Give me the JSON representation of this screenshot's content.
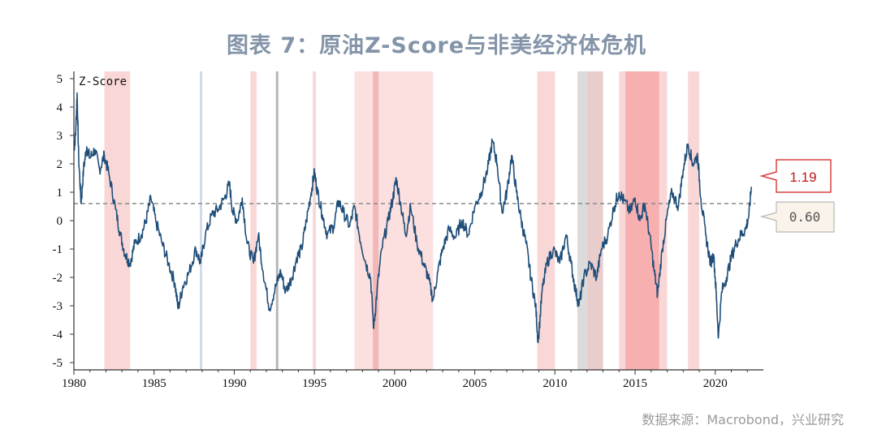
{
  "title": "图表 7：原油Z-Score与非美经济体危机",
  "source": "数据来源：Macrobond，兴业研究",
  "chart_data": {
    "type": "line",
    "series_name": "Z-Score",
    "xlim": [
      1980,
      2023
    ],
    "ylim": [
      -5,
      5
    ],
    "x_ticks": [
      1980,
      1985,
      1990,
      1995,
      2000,
      2005,
      2010,
      2015,
      2020
    ],
    "y_ticks": [
      5,
      4,
      3,
      2,
      1,
      0,
      -1,
      -2,
      -3,
      -4,
      -5
    ],
    "reference_line": {
      "value": 0.6,
      "label": "0.60",
      "style": "dashed"
    },
    "latest_value": {
      "value": 1.19,
      "label": "1.19"
    },
    "line_color": "#1f4e79",
    "points": [
      [
        1980.0,
        2.5
      ],
      [
        1980.1,
        3.0
      ],
      [
        1980.2,
        4.5
      ],
      [
        1980.3,
        2.2
      ],
      [
        1980.45,
        0.6
      ],
      [
        1980.6,
        1.8
      ],
      [
        1980.8,
        2.6
      ],
      [
        1981.0,
        2.2
      ],
      [
        1981.3,
        2.5
      ],
      [
        1981.6,
        1.8
      ],
      [
        1981.9,
        2.3
      ],
      [
        1982.2,
        1.6
      ],
      [
        1982.6,
        0.4
      ],
      [
        1982.9,
        -0.5
      ],
      [
        1983.2,
        -1.2
      ],
      [
        1983.5,
        -1.5
      ],
      [
        1983.8,
        -0.8
      ],
      [
        1984.2,
        -0.5
      ],
      [
        1984.5,
        0.0
      ],
      [
        1984.8,
        0.8
      ],
      [
        1985.1,
        0.0
      ],
      [
        1985.5,
        -0.8
      ],
      [
        1985.9,
        -1.5
      ],
      [
        1986.3,
        -2.2
      ],
      [
        1986.5,
        -3.1
      ],
      [
        1986.8,
        -2.3
      ],
      [
        1987.2,
        -1.8
      ],
      [
        1987.6,
        -1.0
      ],
      [
        1987.9,
        -1.5
      ],
      [
        1988.2,
        -0.5
      ],
      [
        1988.6,
        0.2
      ],
      [
        1989.0,
        0.4
      ],
      [
        1989.4,
        0.8
      ],
      [
        1989.7,
        1.3
      ],
      [
        1989.9,
        0.3
      ],
      [
        1990.2,
        0.0
      ],
      [
        1990.5,
        0.8
      ],
      [
        1990.8,
        -0.8
      ],
      [
        1991.2,
        -1.5
      ],
      [
        1991.5,
        -0.5
      ],
      [
        1991.8,
        -1.8
      ],
      [
        1992.2,
        -3.1
      ],
      [
        1992.6,
        -2.3
      ],
      [
        1992.9,
        -1.8
      ],
      [
        1993.2,
        -2.5
      ],
      [
        1993.6,
        -2.0
      ],
      [
        1993.9,
        -1.3
      ],
      [
        1994.2,
        -1.0
      ],
      [
        1994.5,
        0.0
      ],
      [
        1994.8,
        1.0
      ],
      [
        1995.0,
        1.7
      ],
      [
        1995.2,
        1.0
      ],
      [
        1995.5,
        0.2
      ],
      [
        1995.8,
        -0.5
      ],
      [
        1996.2,
        -0.2
      ],
      [
        1996.5,
        0.7
      ],
      [
        1996.8,
        0.3
      ],
      [
        1997.2,
        -0.2
      ],
      [
        1997.5,
        0.5
      ],
      [
        1997.8,
        -0.5
      ],
      [
        1998.2,
        -1.5
      ],
      [
        1998.5,
        -2.0
      ],
      [
        1998.7,
        -3.8
      ],
      [
        1998.9,
        -2.5
      ],
      [
        1999.2,
        -1.0
      ],
      [
        1999.6,
        0.0
      ],
      [
        1999.9,
        0.8
      ],
      [
        2000.1,
        1.5
      ],
      [
        2000.4,
        0.5
      ],
      [
        2000.7,
        -0.5
      ],
      [
        2001.0,
        0.5
      ],
      [
        2001.4,
        -0.8
      ],
      [
        2001.8,
        -1.5
      ],
      [
        2002.1,
        -2.0
      ],
      [
        2002.4,
        -2.8
      ],
      [
        2002.7,
        -1.8
      ],
      [
        2003.0,
        -1.0
      ],
      [
        2003.4,
        -0.3
      ],
      [
        2003.8,
        -0.6
      ],
      [
        2004.2,
        0.0
      ],
      [
        2004.6,
        -0.5
      ],
      [
        2005.0,
        0.5
      ],
      [
        2005.4,
        1.0
      ],
      [
        2005.8,
        1.8
      ],
      [
        2006.1,
        2.8
      ],
      [
        2006.4,
        2.0
      ],
      [
        2006.7,
        0.3
      ],
      [
        2007.0,
        1.0
      ],
      [
        2007.3,
        2.3
      ],
      [
        2007.6,
        1.0
      ],
      [
        2007.9,
        0.0
      ],
      [
        2008.2,
        -0.8
      ],
      [
        2008.5,
        -2.0
      ],
      [
        2008.8,
        -3.0
      ],
      [
        2008.95,
        -4.3
      ],
      [
        2009.2,
        -2.5
      ],
      [
        2009.5,
        -1.5
      ],
      [
        2009.9,
        -1.0
      ],
      [
        2010.3,
        -1.5
      ],
      [
        2010.7,
        -0.5
      ],
      [
        2011.0,
        -1.5
      ],
      [
        2011.3,
        -2.5
      ],
      [
        2011.5,
        -3.0
      ],
      [
        2011.8,
        -2.0
      ],
      [
        2012.2,
        -1.5
      ],
      [
        2012.6,
        -2.0
      ],
      [
        2012.9,
        -1.0
      ],
      [
        2013.3,
        -0.5
      ],
      [
        2013.7,
        0.5
      ],
      [
        2014.0,
        1.0
      ],
      [
        2014.3,
        0.7
      ],
      [
        2014.7,
        0.3
      ],
      [
        2015.0,
        0.8
      ],
      [
        2015.3,
        0.0
      ],
      [
        2015.6,
        0.6
      ],
      [
        2015.9,
        -0.5
      ],
      [
        2016.2,
        -1.8
      ],
      [
        2016.4,
        -2.6
      ],
      [
        2016.7,
        -1.0
      ],
      [
        2017.0,
        0.2
      ],
      [
        2017.3,
        1.0
      ],
      [
        2017.7,
        0.5
      ],
      [
        2018.0,
        1.8
      ],
      [
        2018.3,
        2.7
      ],
      [
        2018.6,
        2.0
      ],
      [
        2018.9,
        2.3
      ],
      [
        2019.1,
        0.8
      ],
      [
        2019.4,
        -0.5
      ],
      [
        2019.7,
        -1.5
      ],
      [
        2019.9,
        -1.2
      ],
      [
        2020.05,
        -2.5
      ],
      [
        2020.2,
        -4.1
      ],
      [
        2020.4,
        -2.5
      ],
      [
        2020.7,
        -2.0
      ],
      [
        2021.0,
        -1.3
      ],
      [
        2021.3,
        -0.8
      ],
      [
        2021.6,
        -0.5
      ],
      [
        2021.9,
        -0.3
      ],
      [
        2022.1,
        0.2
      ],
      [
        2022.25,
        1.19
      ]
    ],
    "shaded_periods": [
      {
        "start": 1981.9,
        "end": 1983.5,
        "color": "#f9d0d0"
      },
      {
        "start": 1987.85,
        "end": 1988.0,
        "color": "#c9d4e6"
      },
      {
        "start": 1991.0,
        "end": 1991.4,
        "color": "#f9d0d0"
      },
      {
        "start": 1992.6,
        "end": 1992.75,
        "color": "#a9a9a9"
      },
      {
        "start": 1994.9,
        "end": 1995.1,
        "color": "#f9d0d0"
      },
      {
        "start": 1997.5,
        "end": 2002.4,
        "color": "#fbd9d9"
      },
      {
        "start": 1998.65,
        "end": 1999.0,
        "color": "#f0b0b0"
      },
      {
        "start": 2008.9,
        "end": 2010.0,
        "color": "#f9d0d0"
      },
      {
        "start": 2011.4,
        "end": 2012.0,
        "color": "#d5d5d5"
      },
      {
        "start": 2012.0,
        "end": 2013.0,
        "color": "#e5c3c3"
      },
      {
        "start": 2014.0,
        "end": 2017.0,
        "color": "#f9d0d0"
      },
      {
        "start": 2014.4,
        "end": 2016.5,
        "color": "#f6a8a8"
      },
      {
        "start": 2018.3,
        "end": 2019.0,
        "color": "#f9d0d0"
      }
    ]
  }
}
